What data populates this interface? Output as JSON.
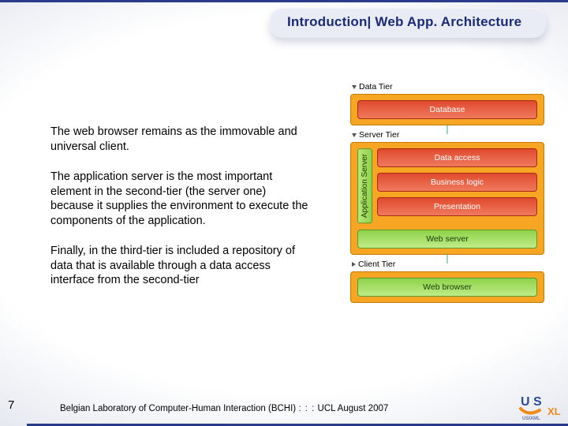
{
  "title": "Introduction| Web App. Architecture",
  "paragraphs": [
    "The web browser remains as the immovable and universal client.",
    "The application server is the most important element in the second-tier (the server one) because it supplies the environment to execute the components of the application.",
    "Finally, in the third-tier is included a repository of data that is available through a data access interface from the second-tier"
  ],
  "diagram": {
    "tiers": [
      {
        "label": "Data Tier",
        "triangle": "open",
        "box_bg": "#f6a623",
        "box_border": "#c47a00",
        "nodes": [
          {
            "label": "Database",
            "bg_from": "#e04a2e",
            "bg_to": "#f07a5e",
            "border": "#a82a14"
          }
        ]
      },
      {
        "label": "Server Tier",
        "triangle": "open",
        "box_bg": "#f6a623",
        "box_border": "#c47a00",
        "app_server_label": "Application Server",
        "app_server_nodes": [
          {
            "label": "Data access",
            "bg_from": "#e04a2e",
            "bg_to": "#f07a5e",
            "border": "#a82a14"
          },
          {
            "label": "Business logic",
            "bg_from": "#e04a2e",
            "bg_to": "#f07a5e",
            "border": "#a82a14"
          },
          {
            "label": "Presentation",
            "bg_from": "#e04a2e",
            "bg_to": "#f07a5e",
            "border": "#a82a14"
          }
        ],
        "extra_node": {
          "label": "Web server",
          "bg_from": "#8fd24a",
          "bg_to": "#bfec88",
          "border": "#5a9a2a",
          "text": "#153a00"
        }
      },
      {
        "label": "Client Tier",
        "triangle": "closed",
        "box_bg": "#f6a623",
        "box_border": "#c47a00",
        "nodes": [
          {
            "label": "Web browser",
            "bg_from": "#8fd24a",
            "bg_to": "#bfec88",
            "border": "#5a9a2a",
            "text": "#153a00"
          }
        ]
      }
    ]
  },
  "page_number": "7",
  "footer": {
    "org": "Belgian Laboratory of Computer-Human Interaction (BCHI)",
    "dots": ": : :",
    "tail": "UCL  August 2007"
  },
  "logo": {
    "top_text": "U S",
    "top_color": "#2b4aa0",
    "side_text": "XL",
    "side_color": "#f08a1a",
    "sub_text": "USIXML",
    "sub_color": "#6a7aa8"
  }
}
